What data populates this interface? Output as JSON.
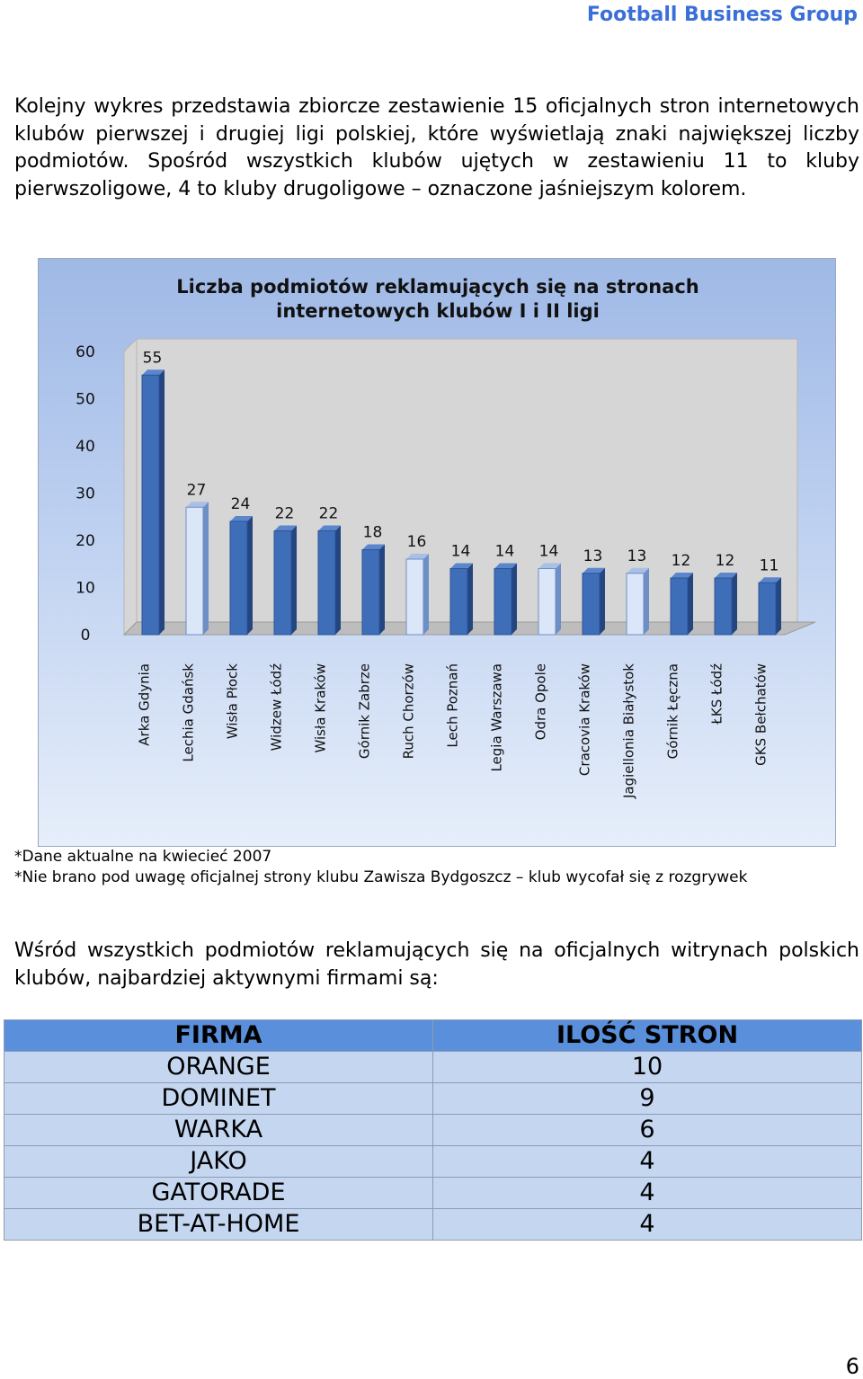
{
  "header": {
    "brand": "Football Business Group"
  },
  "intro_text": "Kolejny wykres przedstawia zbiorcze zestawienie 15 oficjalnych stron internetowych klubów pierwszej i drugiej ligi polskiej, które wyświetlają znaki największej liczby podmiotów. Spośród wszystkich klubów ujętych w zestawieniu 11 to kluby pierwszoligowe, 4 to kluby drugoligowe – oznaczone jaśniejszym kolorem.",
  "chart_data": {
    "type": "bar",
    "title_line1": "Liczba podmiotów reklamujących się na stronach",
    "title_line2": "internetowych klubów I i II ligi",
    "categories": [
      "Arka Gdynia",
      "Lechia Gdańsk",
      "Wisła Płock",
      "Widzew Łódź",
      "Wisła Kraków",
      "Górnik Zabrze",
      "Ruch Chorzów",
      "Lech Poznań",
      "Legia Warszawa",
      "Odra Opole",
      "Cracovia Kraków",
      "Jagiellonia Białystok",
      "Górnik Łęczna",
      "ŁKS Łódź",
      "GKS Bełchatów"
    ],
    "values": [
      55,
      27,
      24,
      22,
      22,
      18,
      16,
      14,
      14,
      14,
      13,
      13,
      12,
      12,
      11
    ],
    "league": [
      1,
      2,
      1,
      1,
      1,
      1,
      2,
      1,
      1,
      2,
      1,
      2,
      1,
      1,
      1
    ],
    "ylim": [
      0,
      60
    ],
    "yticks": [
      0,
      10,
      20,
      30,
      40,
      50,
      60
    ],
    "colors": {
      "first_league": "#3f6eb8",
      "second_league": "#dbe6f8",
      "wall": "#d6d6d6",
      "floor": "#bdbdbd"
    },
    "grid": false,
    "legend": "none",
    "data_labels": true
  },
  "notes": [
    "*Dane aktualne na kwiecieć 2007",
    "*Nie brano pod uwagę oficjalnej strony klubu Zawisza Bydgoszcz – klub wycofał się z rozgrywek"
  ],
  "outro_text": "Wśród wszystkich podmiotów reklamujących się na oficjalnych witrynach polskich klubów, najbardziej aktywnymi firmami są:",
  "table": {
    "headers": [
      "FIRMA",
      "ILOŚĆ STRON"
    ],
    "rows": [
      [
        "ORANGE",
        "10"
      ],
      [
        "DOMINET",
        "9"
      ],
      [
        "WARKA",
        "6"
      ],
      [
        "JAKO",
        "4"
      ],
      [
        "GATORADE",
        "4"
      ],
      [
        "BET-AT-HOME",
        "4"
      ]
    ]
  },
  "page_number": "6"
}
